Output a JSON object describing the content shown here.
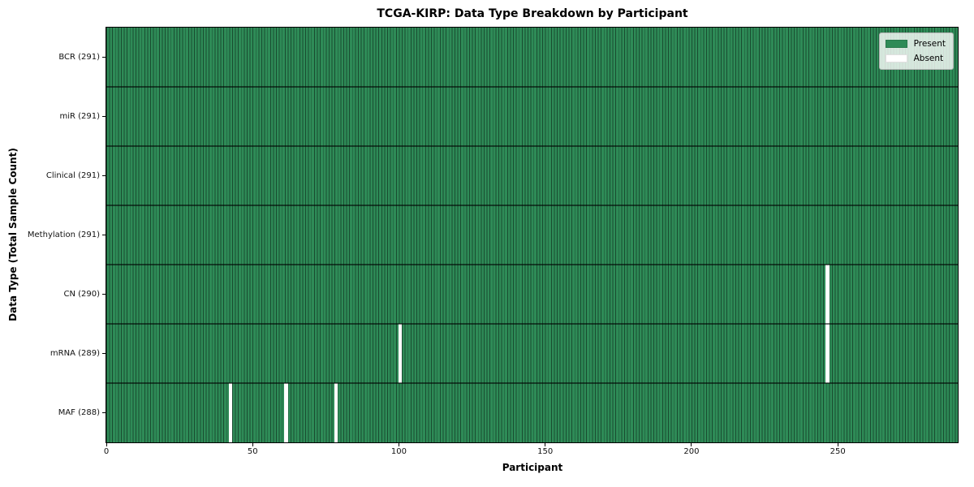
{
  "figure": {
    "title": "TCGA-KIRP: Data Type Breakdown by Participant",
    "xlabel": "Participant",
    "ylabel": "Data Type (Total Sample Count)"
  },
  "legend": {
    "items": [
      {
        "label": "Present",
        "color": "#2e8b57"
      },
      {
        "label": "Absent",
        "color": "#ffffff"
      }
    ]
  },
  "chart_data": {
    "type": "heatmap",
    "title": "TCGA-KIRP: Data Type Breakdown by Participant",
    "xlabel": "Participant",
    "ylabel": "Data Type (Total Sample Count)",
    "legend_position": "upper right",
    "n_participants": 291,
    "xlim": [
      0,
      291
    ],
    "x_ticks": [
      0,
      50,
      100,
      150,
      200,
      250
    ],
    "rows": [
      {
        "data_type": "BCR",
        "label": "BCR (291)",
        "present_count": 291,
        "absent_participants": []
      },
      {
        "data_type": "miR",
        "label": "miR (291)",
        "present_count": 291,
        "absent_participants": []
      },
      {
        "data_type": "Clinical",
        "label": "Clinical (291)",
        "present_count": 291,
        "absent_participants": []
      },
      {
        "data_type": "Methylation",
        "label": "Methylation (291)",
        "present_count": 291,
        "absent_participants": []
      },
      {
        "data_type": "CN",
        "label": "CN (290)",
        "present_count": 290,
        "absent_participants": [
          246
        ]
      },
      {
        "data_type": "mRNA",
        "label": "mRNA (289)",
        "present_count": 289,
        "absent_participants": [
          100,
          246
        ]
      },
      {
        "data_type": "MAF",
        "label": "MAF (288)",
        "present_count": 288,
        "absent_participants": [
          42,
          61,
          78
        ]
      }
    ],
    "colors": {
      "present": "#2e8b57",
      "absent": "#ffffff",
      "bar_edge": "rgba(0,0,0,0.45)",
      "row_separator": "rgba(0,0,0,0.55)"
    }
  }
}
